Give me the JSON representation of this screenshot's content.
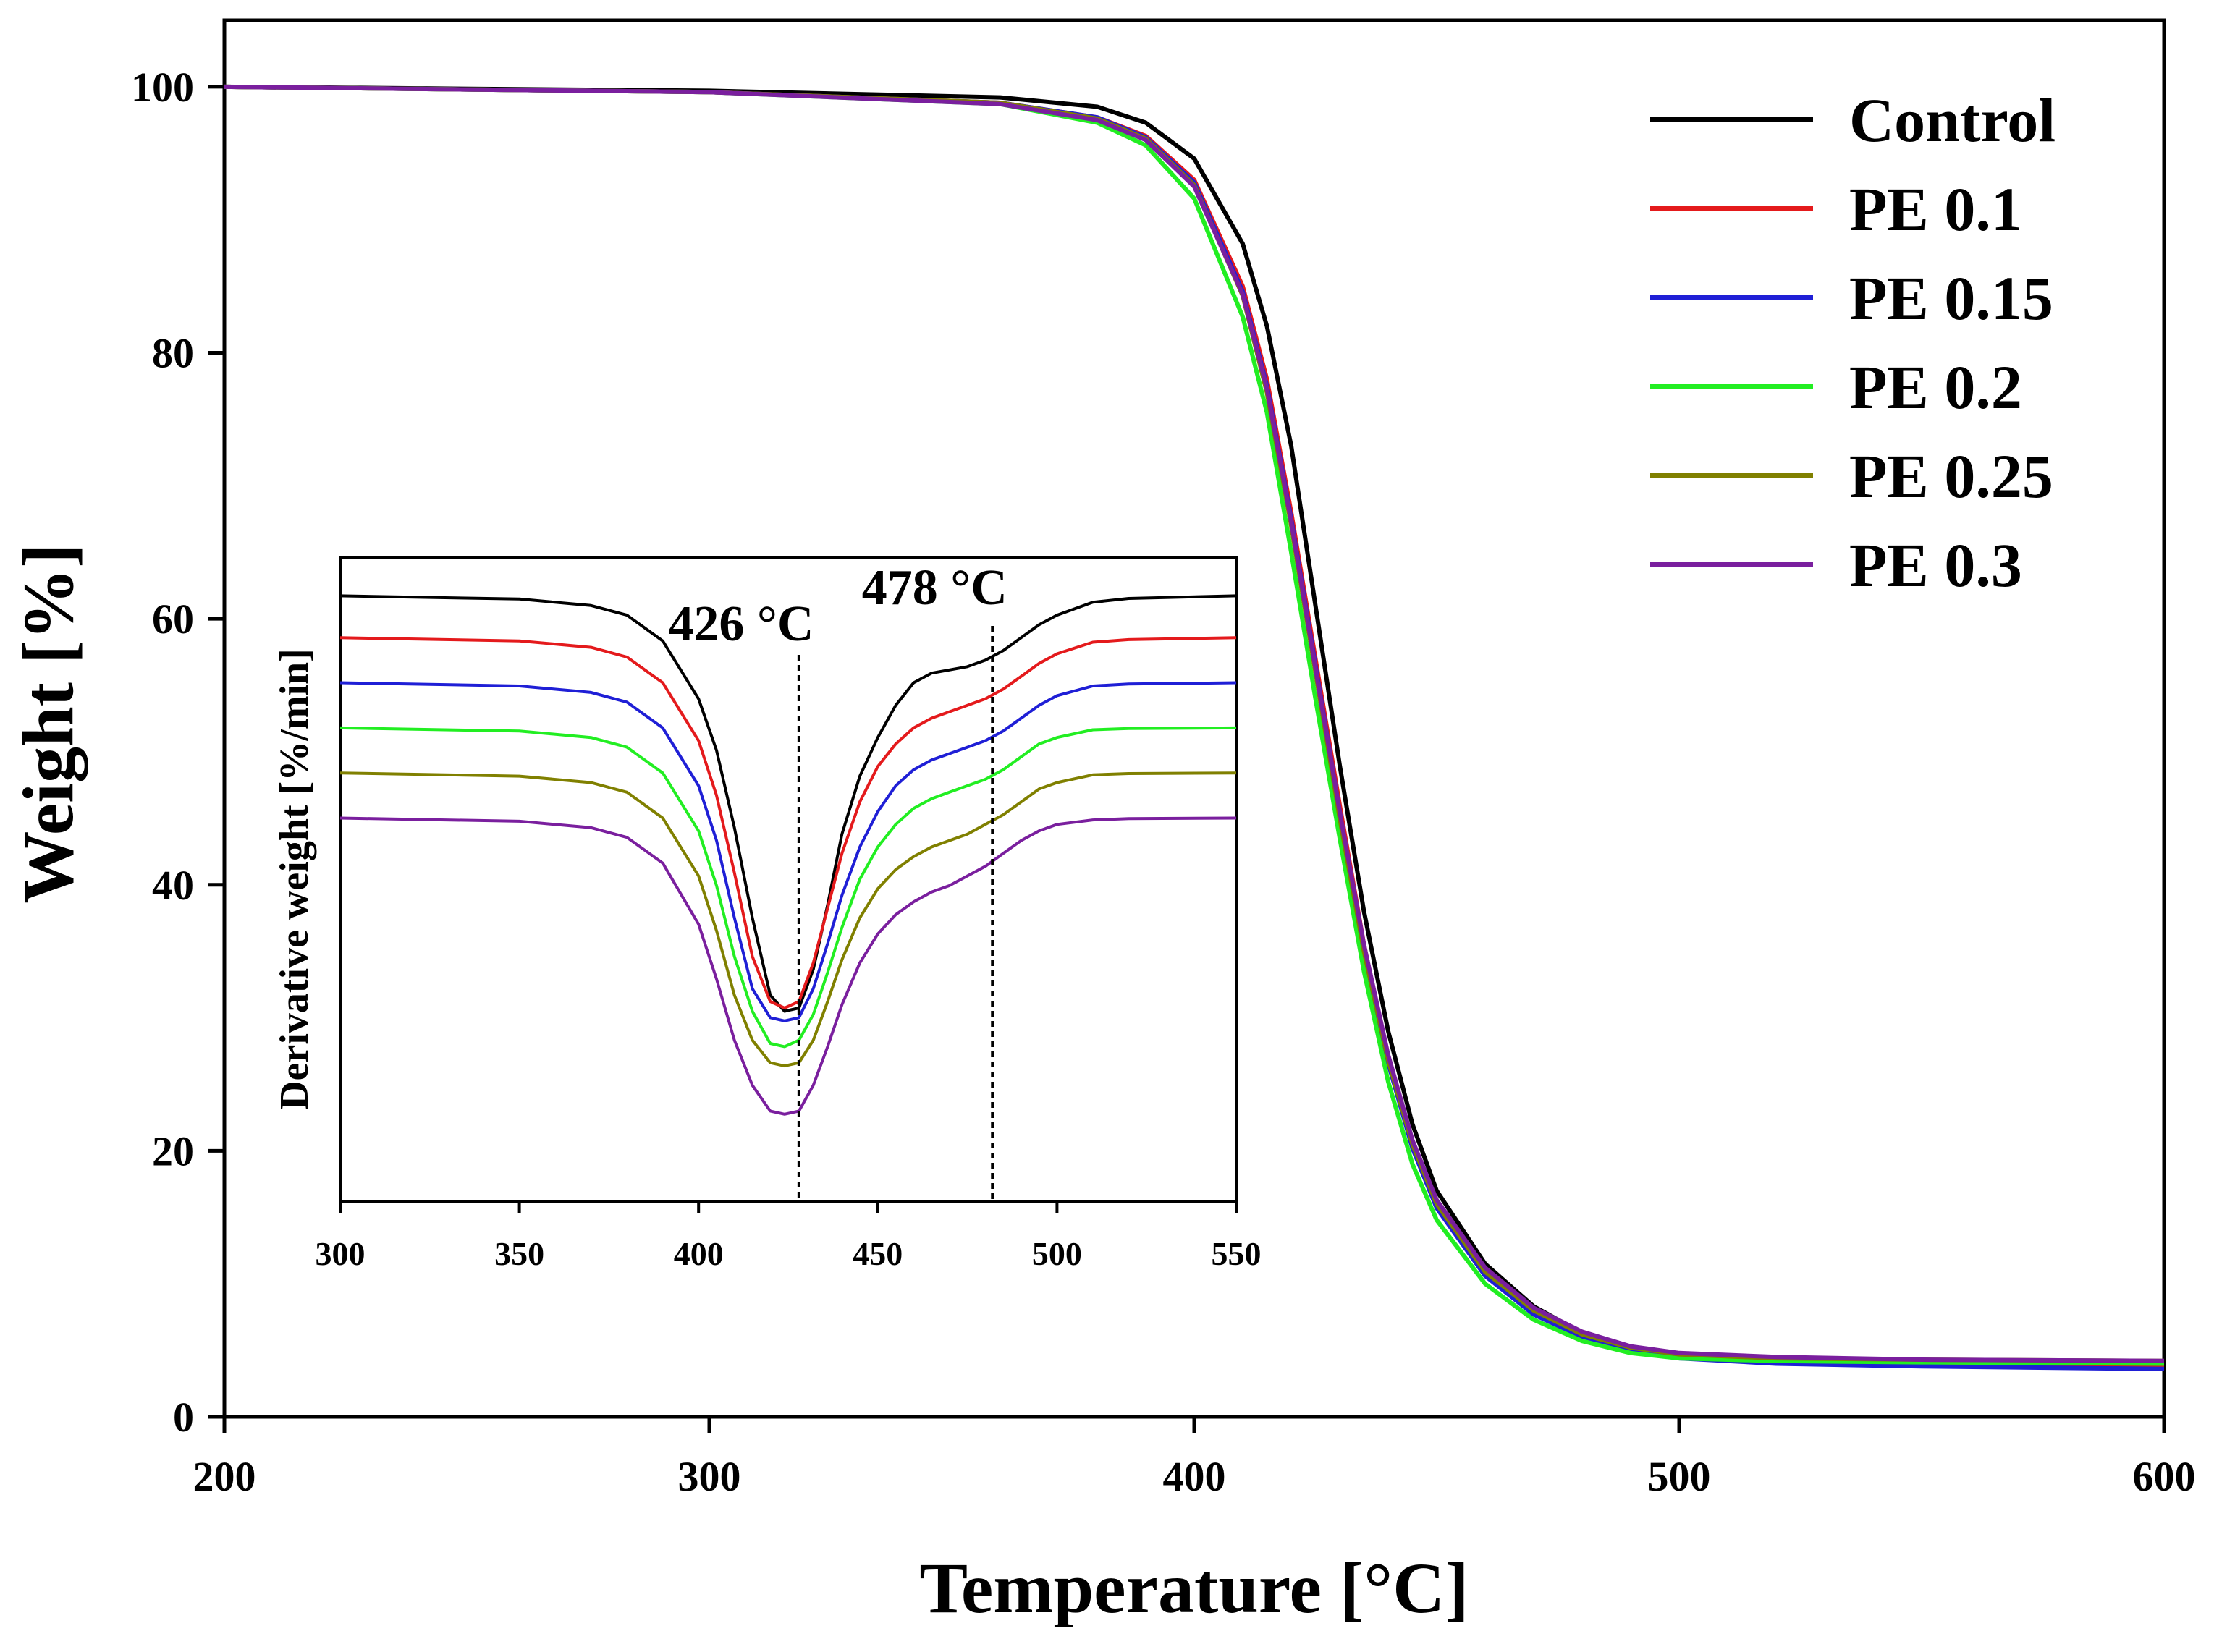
{
  "chart_data": [
    {
      "id": "main",
      "type": "line",
      "title": "",
      "xlabel": "Temperature [°C]",
      "ylabel": "Weight [%]",
      "xlim": [
        200,
        600
      ],
      "ylim": [
        0,
        105
      ],
      "xticks": [
        200,
        300,
        400,
        500,
        600
      ],
      "yticks": [
        0,
        20,
        40,
        60,
        80,
        100
      ],
      "legend_position": "top-right",
      "series": [
        {
          "name": "Control",
          "color": "#000000",
          "x": [
            200,
            300,
            360,
            380,
            390,
            400,
            410,
            415,
            420,
            425,
            430,
            435,
            440,
            445,
            450,
            460,
            470,
            480,
            490,
            500,
            520,
            550,
            600
          ],
          "y": [
            100,
            99.7,
            99.2,
            98.5,
            97.3,
            94.6,
            88.2,
            82,
            73,
            61,
            49,
            38,
            29,
            22,
            17,
            11.5,
            8.3,
            6.3,
            5.2,
            4.6,
            4.3,
            4.1,
            3.9
          ]
        },
        {
          "name": "PE 0.1",
          "color": "#e41a1c",
          "x": [
            200,
            300,
            360,
            380,
            390,
            400,
            410,
            415,
            420,
            425,
            430,
            435,
            440,
            445,
            450,
            460,
            470,
            480,
            490,
            500,
            520,
            550,
            600
          ],
          "y": [
            100,
            99.6,
            98.8,
            97.7,
            96.3,
            93.0,
            85.0,
            78,
            68,
            57,
            46,
            35.5,
            27,
            20.5,
            16,
            10.8,
            7.9,
            6.1,
            5.1,
            4.6,
            4.3,
            4.1,
            3.9
          ]
        },
        {
          "name": "PE 0.15",
          "color": "#1f1fd6",
          "x": [
            200,
            300,
            360,
            380,
            390,
            400,
            410,
            415,
            420,
            425,
            430,
            435,
            440,
            445,
            450,
            460,
            470,
            480,
            490,
            500,
            520,
            550,
            600
          ],
          "y": [
            100,
            99.6,
            98.8,
            97.7,
            96.2,
            92.8,
            84.6,
            77.5,
            67.5,
            56.5,
            45.5,
            35,
            26.6,
            20.2,
            15.7,
            10.6,
            7.7,
            6.0,
            5.0,
            4.4,
            4.0,
            3.8,
            3.6
          ]
        },
        {
          "name": "PE 0.2",
          "color": "#22ee22",
          "x": [
            200,
            300,
            360,
            380,
            390,
            400,
            410,
            415,
            420,
            425,
            430,
            435,
            440,
            445,
            450,
            460,
            470,
            480,
            490,
            500,
            520,
            550,
            600
          ],
          "y": [
            100,
            99.6,
            98.7,
            97.3,
            95.6,
            91.6,
            82.7,
            75.5,
            65,
            54,
            43.5,
            33.5,
            25.2,
            19,
            14.8,
            10,
            7.3,
            5.7,
            4.8,
            4.4,
            4.2,
            4.1,
            4.0
          ]
        },
        {
          "name": "PE 0.25",
          "color": "#808000",
          "x": [
            200,
            300,
            360,
            380,
            390,
            400,
            410,
            415,
            420,
            425,
            430,
            435,
            440,
            445,
            450,
            460,
            470,
            480,
            490,
            500,
            520,
            550,
            600
          ],
          "y": [
            100,
            99.6,
            98.8,
            97.6,
            96.1,
            92.6,
            84.3,
            77,
            67,
            56,
            45,
            35,
            26.8,
            20.5,
            16,
            10.9,
            8,
            6.2,
            5.2,
            4.7,
            4.4,
            4.3,
            4.2
          ]
        },
        {
          "name": "PE 0.3",
          "color": "#7a1f9e",
          "x": [
            200,
            300,
            360,
            380,
            390,
            400,
            410,
            415,
            420,
            425,
            430,
            435,
            440,
            445,
            450,
            460,
            470,
            480,
            490,
            500,
            520,
            550,
            600
          ],
          "y": [
            100,
            99.6,
            98.7,
            97.5,
            96.0,
            92.5,
            84.4,
            77.3,
            67.3,
            56.3,
            45.5,
            35.5,
            27.2,
            20.8,
            16.3,
            11.2,
            8.2,
            6.4,
            5.3,
            4.8,
            4.5,
            4.3,
            4.2
          ]
        }
      ]
    },
    {
      "id": "inset",
      "type": "line",
      "title": "",
      "xlabel": "",
      "ylabel": "Derivative weight [%/min]",
      "xlim": [
        300,
        550
      ],
      "ylim": [
        0,
        100
      ],
      "xticks": [
        300,
        350,
        400,
        450,
        500,
        550
      ],
      "yticks": [],
      "annotations": [
        {
          "text": "426 °C",
          "x": 428
        },
        {
          "text": "478 °C",
          "x": 482
        }
      ],
      "series": [
        {
          "name": "Control",
          "color": "#000000",
          "x": [
            300,
            350,
            370,
            380,
            390,
            400,
            405,
            410,
            415,
            420,
            424,
            428,
            432,
            436,
            440,
            445,
            450,
            455,
            460,
            465,
            470,
            475,
            480,
            485,
            490,
            495,
            500,
            510,
            520,
            550
          ],
          "y": [
            94,
            93.5,
            92.5,
            91,
            87,
            78,
            70,
            58,
            44,
            32,
            29.5,
            30,
            36,
            46,
            57,
            66,
            72,
            77,
            80.5,
            82,
            82.5,
            83,
            84,
            85.5,
            87.5,
            89.5,
            91,
            93,
            93.6,
            94
          ]
        },
        {
          "name": "PE 0.1",
          "color": "#e41a1c",
          "x": [
            300,
            350,
            370,
            380,
            390,
            400,
            405,
            410,
            415,
            420,
            424,
            428,
            432,
            436,
            440,
            445,
            450,
            455,
            460,
            465,
            470,
            475,
            480,
            485,
            490,
            495,
            500,
            510,
            520,
            550
          ],
          "y": [
            87.5,
            87,
            86,
            84.5,
            80.5,
            71.5,
            63,
            51,
            38,
            31,
            30,
            31,
            37,
            45.5,
            54,
            62,
            67.5,
            71,
            73.5,
            75,
            76,
            77,
            78,
            79.5,
            81.5,
            83.5,
            85,
            86.8,
            87.2,
            87.5
          ]
        },
        {
          "name": "PE 0.15",
          "color": "#1f1fd6",
          "x": [
            300,
            350,
            370,
            380,
            390,
            400,
            405,
            410,
            415,
            420,
            424,
            428,
            432,
            436,
            440,
            445,
            450,
            455,
            460,
            465,
            470,
            475,
            480,
            485,
            490,
            495,
            500,
            510,
            520,
            550
          ],
          "y": [
            80.5,
            80,
            79,
            77.5,
            73.5,
            64.5,
            56,
            44,
            33,
            28.5,
            28,
            28.5,
            33,
            40,
            47.5,
            55,
            60.5,
            64.5,
            67,
            68.5,
            69.5,
            70.5,
            71.5,
            73,
            75,
            77,
            78.5,
            80,
            80.3,
            80.5
          ]
        },
        {
          "name": "PE 0.2",
          "color": "#22ee22",
          "x": [
            300,
            350,
            370,
            380,
            390,
            400,
            405,
            410,
            415,
            420,
            424,
            428,
            432,
            436,
            440,
            445,
            450,
            455,
            460,
            465,
            470,
            475,
            480,
            485,
            490,
            495,
            500,
            510,
            520,
            550
          ],
          "y": [
            73.5,
            73,
            72,
            70.5,
            66.5,
            57.5,
            49,
            38,
            29.5,
            24.5,
            24,
            25,
            29,
            35.5,
            42.5,
            50,
            55,
            58.5,
            61,
            62.5,
            63.5,
            64.5,
            65.5,
            67,
            69,
            71,
            72,
            73.2,
            73.4,
            73.5
          ]
        },
        {
          "name": "PE 0.25",
          "color": "#808000",
          "x": [
            300,
            350,
            370,
            380,
            390,
            400,
            405,
            410,
            415,
            420,
            424,
            428,
            432,
            436,
            440,
            445,
            450,
            455,
            460,
            465,
            470,
            475,
            480,
            485,
            490,
            495,
            500,
            510,
            520,
            550
          ],
          "y": [
            66.5,
            66,
            65,
            63.5,
            59.5,
            50.5,
            42,
            32,
            25,
            21.5,
            21,
            21.5,
            25,
            31,
            37.5,
            44,
            48.5,
            51.5,
            53.5,
            55,
            56,
            57,
            58.5,
            60,
            62,
            64,
            65,
            66.2,
            66.4,
            66.5
          ]
        },
        {
          "name": "PE 0.3",
          "color": "#7a1f9e",
          "x": [
            300,
            350,
            370,
            380,
            390,
            400,
            405,
            410,
            415,
            420,
            424,
            428,
            432,
            436,
            440,
            445,
            450,
            455,
            460,
            465,
            470,
            475,
            480,
            485,
            490,
            495,
            500,
            510,
            520,
            550
          ],
          "y": [
            59.5,
            59,
            58,
            56.5,
            52.5,
            43,
            34.5,
            25,
            18,
            14,
            13.5,
            14,
            18,
            24,
            30.5,
            37,
            41.5,
            44.5,
            46.5,
            48,
            49,
            50.5,
            52,
            54,
            56,
            57.5,
            58.5,
            59.2,
            59.4,
            59.5
          ]
        }
      ]
    }
  ]
}
